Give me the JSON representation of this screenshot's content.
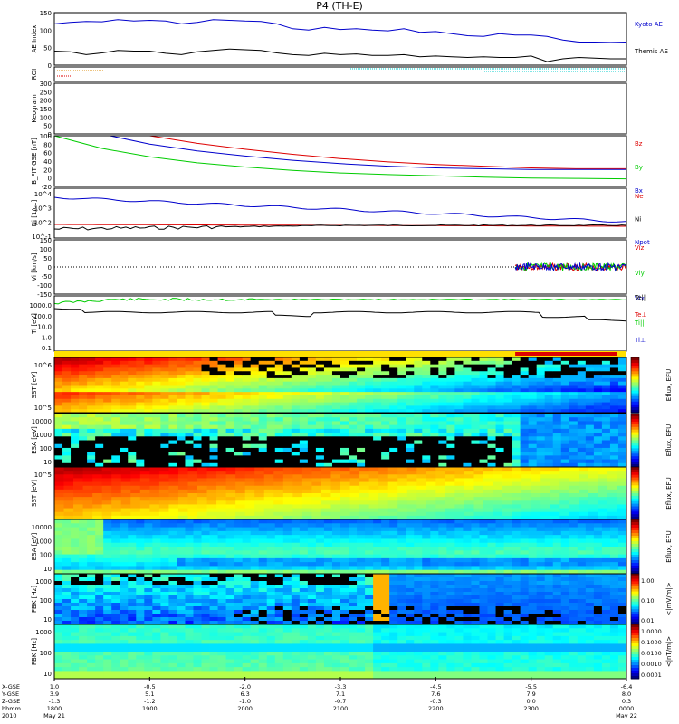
{
  "title": "P4 (TH-E)",
  "time_axis": {
    "row_labels": [
      "X-GSE",
      "Y-GSE",
      "Z-GSE",
      "hhmm",
      "2010"
    ],
    "ticks": [
      {
        "values": [
          "1.0",
          "3.9",
          "-1.3",
          "1800",
          "May 21"
        ]
      },
      {
        "values": [
          "-0.5",
          "5.1",
          "-1.2",
          "1900",
          ""
        ]
      },
      {
        "values": [
          "-2.0",
          "6.3",
          "-1.0",
          "2000",
          ""
        ]
      },
      {
        "values": [
          "-3.3",
          "7.1",
          "-0.7",
          "2100",
          ""
        ]
      },
      {
        "values": [
          "-4.5",
          "7.6",
          "-0.3",
          "2200",
          ""
        ]
      },
      {
        "values": [
          "-5.5",
          "7.9",
          "0.0",
          "2300",
          ""
        ]
      },
      {
        "values": [
          "-6.4",
          "8.0",
          "0.3",
          "0000",
          "May 22"
        ]
      }
    ]
  },
  "colors": {
    "black": "#000000",
    "blue": "#0000cc",
    "red": "#dd0000",
    "green": "#00cc00",
    "orange": "#dd8800",
    "cyan": "#00cccc",
    "yellow_bar": "#ffe000",
    "red_bar": "#dd0000"
  },
  "chart_data": [
    {
      "type": "line",
      "panel": "ae",
      "ylabel": "AE Index",
      "yticks": [
        "150",
        "100",
        "50",
        "0"
      ],
      "ylim": [
        0,
        150
      ],
      "legend": [
        "Kyoto AE",
        "Themis AE"
      ],
      "series": [
        {
          "name": "Kyoto AE",
          "color": "#0000cc",
          "x": [
            1800,
            1810,
            1820,
            1830,
            1840,
            1850,
            1900,
            1910,
            1920,
            1930,
            1940,
            1950,
            2000,
            2010,
            2020,
            2030,
            2040,
            2050,
            2100,
            2110,
            2120,
            2130,
            2140,
            2150,
            2200,
            2210,
            2220,
            2230,
            2240,
            2250,
            2300,
            2310,
            2320,
            2330,
            2340,
            2350,
            2400
          ],
          "y": [
            118,
            122,
            125,
            124,
            130,
            126,
            128,
            126,
            118,
            122,
            130,
            128,
            126,
            125,
            118,
            104,
            100,
            108,
            102,
            104,
            100,
            98,
            104,
            94,
            96,
            90,
            84,
            82,
            90,
            86,
            86,
            82,
            72,
            66,
            66,
            65,
            66
          ]
        },
        {
          "name": "Themis AE",
          "color": "#000000",
          "x": [
            1800,
            1810,
            1820,
            1830,
            1840,
            1850,
            1900,
            1910,
            1920,
            1930,
            1940,
            1950,
            2000,
            2010,
            2020,
            2030,
            2040,
            2050,
            2100,
            2110,
            2120,
            2130,
            2140,
            2150,
            2200,
            2210,
            2220,
            2230,
            2240,
            2250,
            2300,
            2310,
            2320,
            2330,
            2340,
            2350,
            2400
          ],
          "y": [
            40,
            38,
            30,
            35,
            42,
            40,
            40,
            34,
            30,
            38,
            42,
            46,
            44,
            42,
            35,
            30,
            28,
            34,
            30,
            32,
            28,
            28,
            30,
            24,
            26,
            24,
            22,
            24,
            22,
            22,
            26,
            10,
            18,
            22,
            20,
            18,
            18
          ]
        }
      ]
    },
    {
      "type": "heatmap",
      "panel": "roi",
      "ylabel": "ROI"
    },
    {
      "type": "line",
      "panel": "keogram",
      "ylabel": "Keogram",
      "yticks": [
        "300",
        "250",
        "200",
        "150",
        "100",
        "50",
        "0"
      ],
      "ylim": [
        0,
        300
      ]
    },
    {
      "type": "line",
      "panel": "bfit",
      "ylabel": "B_FIT GSE [nT]",
      "yticks": [
        "100",
        "80",
        "60",
        "40",
        "20",
        "0",
        "-20"
      ],
      "ylim": [
        -20,
        100
      ],
      "legend": [
        "Bz",
        "By",
        "Bx"
      ],
      "series": [
        {
          "name": "Bz",
          "color": "#dd0000",
          "x": [
            1900,
            1930,
            2000,
            2030,
            2100,
            2130,
            2200,
            2230,
            2300,
            2330,
            2400
          ],
          "y": [
            100,
            82,
            68,
            56,
            46,
            38,
            32,
            28,
            24,
            22,
            22
          ]
        },
        {
          "name": "By",
          "color": "#00cc00",
          "x": [
            1800,
            1830,
            1900,
            1930,
            2000,
            2030,
            2100,
            2130,
            2200,
            2230,
            2300,
            2330,
            2400
          ],
          "y": [
            100,
            70,
            50,
            36,
            26,
            18,
            12,
            8,
            5,
            2,
            0,
            -1,
            -2
          ]
        },
        {
          "name": "Bx",
          "color": "#0000cc",
          "x": [
            1835,
            1900,
            1930,
            2000,
            2030,
            2100,
            2130,
            2200,
            2230,
            2300,
            2330,
            2400
          ],
          "y": [
            100,
            80,
            64,
            52,
            42,
            34,
            28,
            24,
            22,
            20,
            20,
            20
          ]
        }
      ]
    },
    {
      "type": "line",
      "panel": "ni",
      "ylabel": "Ni [1/cc]",
      "yticks": [
        "10^4",
        "10^3",
        "10^2",
        "10^-1"
      ],
      "legend": [
        "Ne",
        "Ni",
        "Npot"
      ],
      "series": [
        {
          "name": "Ne",
          "color": "#dd0000"
        },
        {
          "name": "Ni",
          "color": "#000000"
        },
        {
          "name": "Npot",
          "color": "#0000cc"
        }
      ]
    },
    {
      "type": "line",
      "panel": "vi",
      "ylabel": "Vi [km/s]",
      "yticks": [
        "150",
        "100",
        "50",
        "0",
        "-50",
        "-100",
        "-150"
      ],
      "ylim": [
        -150,
        150
      ],
      "legend": [
        "Viz",
        "Viy",
        "Vix"
      ]
    },
    {
      "type": "line",
      "panel": "ti",
      "ylabel": "Ti [eV]",
      "yticks": [
        "1000.0",
        "100.0",
        "10.0",
        "1.0",
        "0.1"
      ],
      "legend": [
        "Te||",
        "Te⊥",
        "Ti||",
        "Ti⊥"
      ]
    },
    {
      "type": "heatmap",
      "panel": "sst1",
      "ylabel": "SST [eV]",
      "yticks": [
        "10^6",
        "10^5"
      ],
      "colorbar_label": "Eflux, EFU"
    },
    {
      "type": "heatmap",
      "panel": "esa1",
      "ylabel": "ESA [eV]",
      "yticks": [
        "10000",
        "1000",
        "100",
        "10"
      ],
      "colorbar_label": "Eflux, EFU"
    },
    {
      "type": "heatmap",
      "panel": "sst2",
      "ylabel": "SST [eV]",
      "yticks": [
        "10^5"
      ],
      "colorbar_label": "Eflux, EFU"
    },
    {
      "type": "heatmap",
      "panel": "esa2",
      "ylabel": "ESA [eV]",
      "yticks": [
        "10000",
        "1000",
        "100",
        "10"
      ],
      "colorbar_label": "Eflux, EFU"
    },
    {
      "type": "heatmap",
      "panel": "fbk1",
      "ylabel": "FBK [Hz]",
      "yticks": [
        "1000",
        "100",
        "10"
      ],
      "colorbar_label": "<|mV/m|>",
      "colorbar_ticks": [
        "1.00",
        "0.10",
        "0.01"
      ]
    },
    {
      "type": "heatmap",
      "panel": "fbk2",
      "ylabel": "FBK [Hz]",
      "yticks": [
        "1000",
        "100",
        "10"
      ],
      "colorbar_label": "<|nT/m|>",
      "colorbar_ticks": [
        "1.0000",
        "0.1000",
        "0.0100",
        "0.0010",
        "0.0001"
      ]
    }
  ]
}
